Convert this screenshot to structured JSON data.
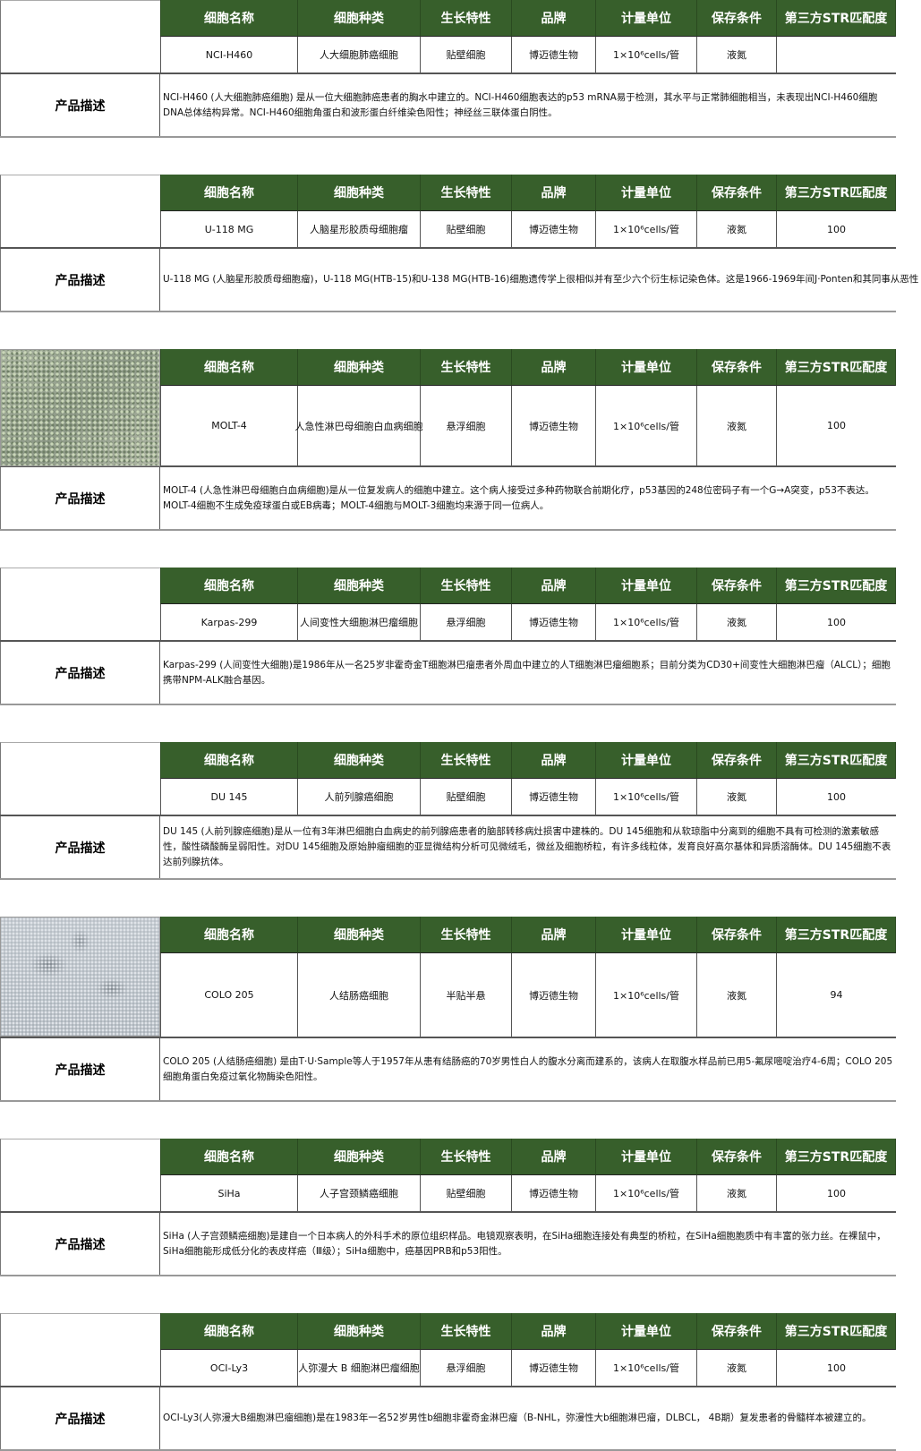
{
  "headers": [
    "细胞名称",
    "细胞种类",
    "生长特性",
    "品牌",
    "计量单位",
    "保存条件",
    "第三方STR匹配度"
  ],
  "desc_label": "产品描述",
  "colors": {
    "header_bg": "#375f2b",
    "header_text": "#ffffff"
  },
  "products": [
    {
      "name": "NCI-H460",
      "type": "人大细胞肺癌细胞",
      "growth": "贴壁细胞",
      "brand": "博迈德生物",
      "unit": "1×10⁶cells/管",
      "storage": "液氮",
      "str": "",
      "image": "",
      "description": "NCI-H460 (人大细胞肺癌细胞) 是从一位大细胞肺癌患者的胸水中建立的。NCI-H460细胞表达的p53 mRNA易于检测，其水平与正常肺细胞相当，未表现出NCI-H460细胞DNA总体结构异常。NCI-H460细胞角蛋白和波形蛋白纤维染色阳性；神经丝三联体蛋白阴性。"
    },
    {
      "name": "U-118 MG",
      "type": "人脑星形胶质母细胞瘤",
      "growth": "贴壁细胞",
      "brand": "博迈德生物",
      "unit": "1×10⁶cells/管",
      "storage": "液氮",
      "str": "100",
      "image": "",
      "description": "U-118 MG (人脑星形胶质母细胞瘤)，U-118 MG(HTB-15)和U-138 MG(HTB-16)细胞遗传学上很相似并有至少六个衍生标记染色体。这是1966-1969年间J·Ponten和其同事从恶性"
    },
    {
      "name": "MOLT-4",
      "type": "人急性淋巴母细胞白血病细胞",
      "growth": "悬浮细胞",
      "brand": "博迈德生物",
      "unit": "1×10⁶cells/管",
      "storage": "液氮",
      "str": "100",
      "image": "molt-4-cell-micrograph",
      "description": "MOLT-4 (人急性淋巴母细胞白血病细胞)是从一位复发病人的细胞中建立。这个病人接受过多种药物联合前期化疗，p53基因的248位密码子有一个G→A突变，p53不表达。MOLT-4细胞不生成免疫球蛋白或EB病毒；MOLT-4细胞与MOLT-3细胞均来源于同一位病人。"
    },
    {
      "name": "Karpas-299",
      "type": "人间变性大细胞淋巴瘤细胞",
      "growth": "悬浮细胞",
      "brand": "博迈德生物",
      "unit": "1×10⁶cells/管",
      "storage": "液氮",
      "str": "100",
      "image": "",
      "description": "Karpas-299 (人间变性大细胞)是1986年从一名25岁非霍奇金T细胞淋巴瘤患者外周血中建立的人T细胞淋巴瘤细胞系；目前分类为CD30+间变性大细胞淋巴瘤（ALCL）；细胞携带NPM-ALK融合基因。"
    },
    {
      "name": "DU 145",
      "type": "人前列腺癌细胞",
      "growth": "贴壁细胞",
      "brand": "博迈德生物",
      "unit": "1×10⁶cells/管",
      "storage": "液氮",
      "str": "100",
      "image": "",
      "description": "DU 145 (人前列腺癌细胞)是从一位有3年淋巴细胞白血病史的前列腺癌患者的脑部转移病灶损害中建株的。DU 145细胞和从软琼脂中分离到的细胞不具有可检测的激素敏感性，酸性磷酸酶呈弱阳性。对DU 145细胞及原始肿瘤细胞的亚显微结构分析可见微绒毛，微丝及细胞桥粒，有许多线粒体，发育良好高尔基体和异质溶酶体。DU 145细胞不表达前列腺抗体。"
    },
    {
      "name": "COLO 205",
      "type": "人结肠癌细胞",
      "growth": "半贴半悬",
      "brand": "博迈德生物",
      "unit": "1×10⁶cells/管",
      "storage": "液氮",
      "str": "94",
      "image": "colo-205-cell-micrograph",
      "description": "COLO 205 (人结肠癌细胞) 是由T·U·Sample等人于1957年从患有结肠癌的70岁男性白人的腹水分离而建系的，该病人在取腹水样品前已用5-氟尿嘧啶治疗4-6周；COLO 205细胞角蛋白免疫过氧化物酶染色阳性。"
    },
    {
      "name": "SiHa",
      "type": "人子宫颈鳞癌细胞",
      "growth": "贴壁细胞",
      "brand": "博迈德生物",
      "unit": "1×10⁶cells/管",
      "storage": "液氮",
      "str": "100",
      "image": "",
      "description": "SiHa (人子宫颈鳞癌细胞)是建自一个日本病人的外科手术的原位组织样品。电镜观察表明，在SiHa细胞连接处有典型的桥粒，在SiHa细胞胞质中有丰富的张力丝。在裸鼠中，SiHa细胞能形成低分化的表皮样癌（Ⅲ级）；SiHa细胞中，癌基因PRB和p53阳性。"
    },
    {
      "name": "OCI-Ly3",
      "type": "人弥漫大 B 细胞淋巴瘤细胞",
      "growth": "悬浮细胞",
      "brand": "博迈德生物",
      "unit": "1×10⁶cells/管",
      "storage": "液氮",
      "str": "100",
      "image": "",
      "description": "OCI-Ly3(人弥漫大B细胞淋巴瘤细胞)是在1983年一名52岁男性b细胞非霍奇金淋巴瘤（B-NHL，弥漫性大b细胞淋巴瘤，DLBCL， 4B期）复发患者的骨髓样本被建立的。"
    }
  ]
}
